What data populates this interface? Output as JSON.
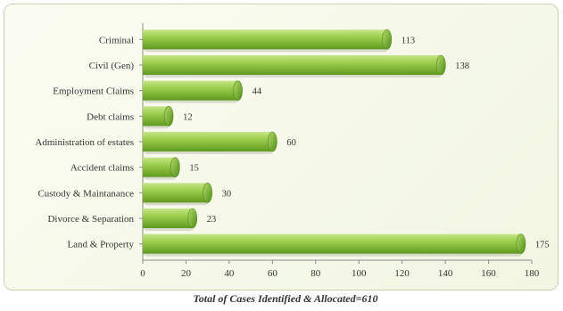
{
  "chart_data": {
    "type": "bar",
    "orientation": "horizontal",
    "categories": [
      "Criminal",
      "Civil (Gen)",
      "Employment Claims",
      "Debt claims",
      "Administration of estates",
      "Accident claims",
      "Custody & Maintanance",
      "Divorce & Separation",
      "Land & Property"
    ],
    "values": [
      113,
      138,
      44,
      12,
      60,
      15,
      30,
      23,
      175
    ],
    "xlim": [
      0,
      180
    ],
    "xticks": [
      0,
      20,
      40,
      60,
      80,
      100,
      120,
      140,
      160,
      180
    ],
    "caption": "Total of Cases Identified & Allocated=610",
    "bar_color": "#8cc63f",
    "grid": false,
    "legend": "none"
  }
}
